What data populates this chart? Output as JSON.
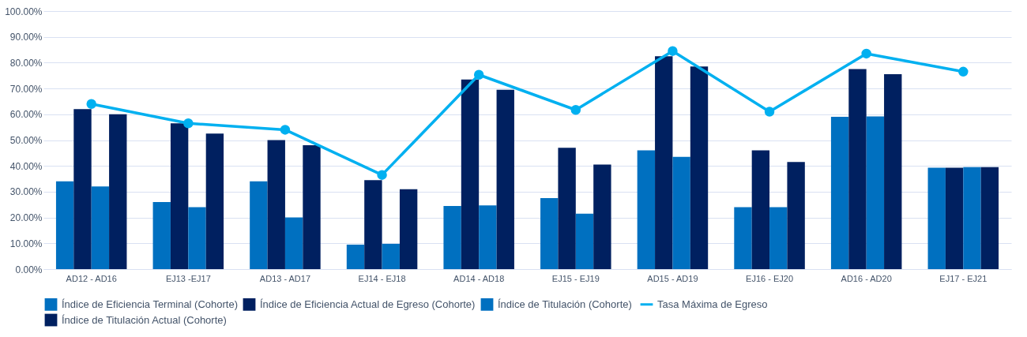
{
  "chart_data": {
    "type": "bar",
    "categories": [
      "AD12 - AD16",
      "EJ13 -EJ17",
      "AD13 - AD17",
      "EJ14 - EJ18",
      "AD14 - AD18",
      "EJ15 - EJ19",
      "AD15 - AD19",
      "EJ16 - EJ20",
      "AD16 - AD20",
      "EJ17 - EJ21"
    ],
    "series": [
      {
        "name": "Índice de Eficiencia Terminal (Cohorte)",
        "color": "#0070c0",
        "values": [
          34,
          26,
          34,
          9.5,
          24.5,
          27.5,
          46,
          24,
          59,
          39.3
        ]
      },
      {
        "name": "Índice de Eficiencia Actual de Egreso (Cohorte)",
        "color": "#002060",
        "values": [
          62,
          56.5,
          50,
          34.5,
          73.5,
          47,
          82.5,
          46,
          77.5,
          39.3
        ]
      },
      {
        "name": "Índice de Titulación (Cohorte)",
        "color": "#0070c0",
        "values": [
          32,
          24,
          20,
          9.8,
          24.7,
          21.5,
          43.5,
          24,
          59.2,
          39.5
        ]
      },
      {
        "name": "Índice de Titulación Actual (Cohorte)",
        "color": "#002060",
        "values": [
          60,
          52.5,
          48,
          31,
          69.5,
          40.5,
          78.5,
          41.5,
          75.5,
          39.5
        ]
      },
      {
        "name": "Tasa Máxima de Egreso",
        "color": "#00b0f0",
        "type": "line",
        "marker": "circle",
        "values": [
          64,
          56.5,
          54,
          36.5,
          75.3,
          61.7,
          84.5,
          61,
          83.5,
          76.5
        ]
      }
    ],
    "ylim": [
      0,
      100
    ],
    "yticks": [
      {
        "value": 0,
        "label": "0.00%"
      },
      {
        "value": 10,
        "label": "10.00%"
      },
      {
        "value": 20,
        "label": "20.00%"
      },
      {
        "value": 30,
        "label": "30.00%"
      },
      {
        "value": 40,
        "label": "40.00%"
      },
      {
        "value": 50,
        "label": "50.00%"
      },
      {
        "value": 60,
        "label": "60.00%"
      },
      {
        "value": 70,
        "label": "70.00%"
      },
      {
        "value": 80,
        "label": "80.00%"
      },
      {
        "value": 90,
        "label": "90.00%"
      },
      {
        "value": 100,
        "label": "100.00%"
      }
    ],
    "grid": "y",
    "legend": "bottom"
  }
}
